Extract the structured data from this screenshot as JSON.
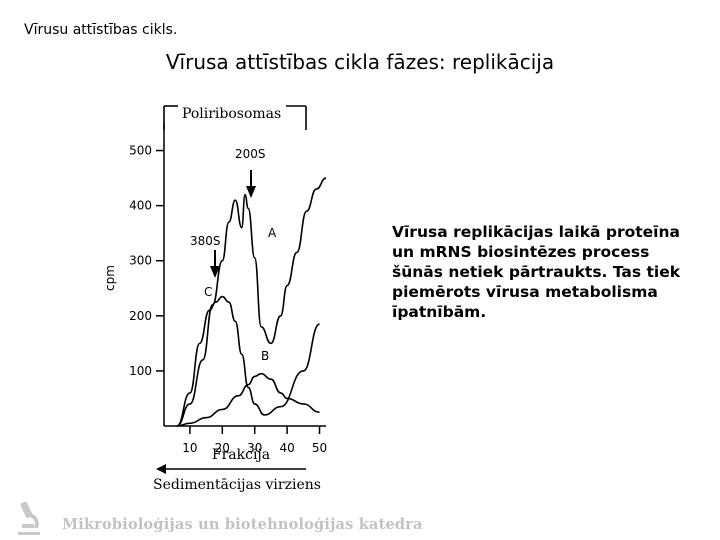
{
  "header": {
    "text": "Vīrusu attīstības cikls."
  },
  "slide": {
    "title": "Vīrusa attīstības cikla fāzes: replikācija"
  },
  "body": {
    "paragraph": "Vīrusa replikācijas laikā proteīna un mRNS biosintēzes process šūnās netiek pārtraukts. Tas tiek piemērots vīrusa metabolisma īpatnībām."
  },
  "footer": {
    "logo_icon": "microscope-icon",
    "text": "Mikrobioloģijas un biotehnoloģijas katedra"
  },
  "chart_data": {
    "type": "line",
    "title": "",
    "xlabel": "Frakcija",
    "ylabel": "cpm",
    "xlim": [
      2,
      52
    ],
    "ylim": [
      0,
      550
    ],
    "x_ticks": [
      10,
      20,
      30,
      40,
      50
    ],
    "y_ticks": [
      100,
      200,
      300,
      400,
      500
    ],
    "series": [
      {
        "name": "A",
        "x": [
          6,
          10,
          14,
          17,
          20,
          22,
          24,
          26,
          27,
          28,
          30,
          32,
          35,
          38,
          40,
          43,
          46,
          49,
          52
        ],
        "y": [
          0,
          40,
          120,
          220,
          300,
          370,
          410,
          360,
          420,
          395,
          305,
          180,
          150,
          200,
          255,
          315,
          390,
          430,
          450
        ]
      },
      {
        "name": "B",
        "x": [
          6,
          10,
          15,
          20,
          25,
          28,
          30,
          32,
          35,
          38,
          40,
          45,
          50
        ],
        "y": [
          0,
          5,
          15,
          30,
          55,
          75,
          90,
          95,
          85,
          60,
          50,
          40,
          25
        ]
      },
      {
        "name": "C",
        "x": [
          6,
          10,
          13,
          16,
          18,
          20,
          22,
          24,
          26,
          28,
          30,
          33,
          38,
          45,
          50
        ],
        "y": [
          0,
          60,
          150,
          210,
          225,
          235,
          225,
          190,
          130,
          70,
          40,
          20,
          35,
          100,
          185
        ]
      }
    ],
    "annotations": [
      {
        "label": "Poliribosomas",
        "type": "bracket",
        "x_from": 3,
        "x_to": 34
      },
      {
        "label": "200S",
        "type": "arrow",
        "x": 24,
        "y_from": 520,
        "y_to": 405
      },
      {
        "label": "380S",
        "type": "arrow",
        "x": 17,
        "y_from": 360,
        "y_to": 255
      },
      {
        "label": "Sedimentācijas virziens",
        "type": "arrow_left",
        "x_from": 47,
        "x_to": 3
      }
    ],
    "curve_labels": [
      "A",
      "B",
      "C"
    ]
  }
}
